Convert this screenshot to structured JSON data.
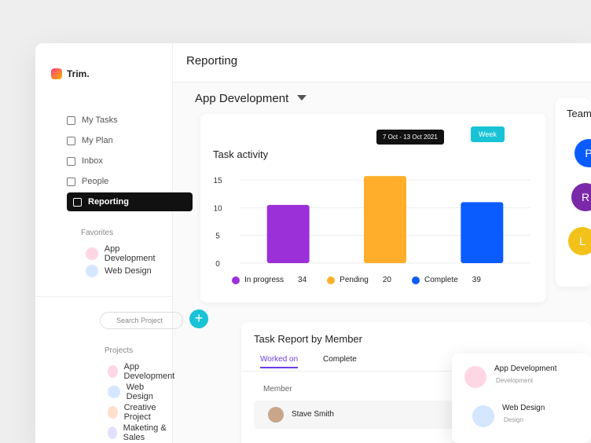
{
  "brand": "Trim.",
  "header": {
    "title": "Reporting"
  },
  "nav": [
    "My Tasks",
    "My Plan",
    "Inbox",
    "People",
    "Reporting"
  ],
  "favorites": {
    "title": "Favorites",
    "items": [
      "App Development",
      "Web Design"
    ]
  },
  "search_placeholder": "Search Project",
  "projects": {
    "title": "Projects",
    "items": [
      "App Development",
      "Web Design",
      "Creative Project",
      "Maketing & Sales"
    ]
  },
  "project_title": "App Development",
  "task_activity": {
    "type": "bar",
    "title": "Task activity",
    "date_range": "7 Oct - 13 Oct 2021",
    "period": "Week",
    "categories": [
      "In progress",
      "Pending",
      "Complete"
    ],
    "values": [
      10.5,
      15.7,
      11
    ],
    "counts": [
      34,
      20,
      39
    ],
    "colors": [
      "#9b30d9",
      "#ffae2b",
      "#0a5cff"
    ],
    "ylim": [
      0,
      17
    ],
    "yticks": [
      0,
      5,
      10,
      15
    ],
    "grid": true
  },
  "team_activity": {
    "title": "Team activity",
    "avatars": [
      "P",
      "R",
      "L"
    ]
  },
  "task_report": {
    "title": "Task Report by Member",
    "tabs": [
      "Worked on",
      "Complete"
    ],
    "column": "Member",
    "members": [
      "Stave Smith"
    ]
  },
  "dropdown": [
    {
      "name": "App Development",
      "sub": "Development"
    },
    {
      "name": "Web Design",
      "sub": "Design"
    }
  ]
}
